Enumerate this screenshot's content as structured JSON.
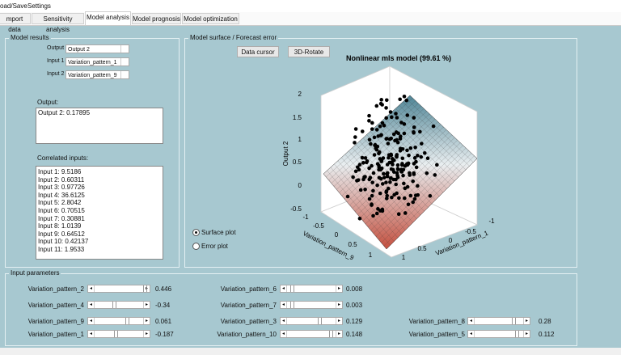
{
  "menu": [
    "oad/Save",
    "Settings"
  ],
  "tabs": [
    "mport data",
    "Sensitivity analysis",
    "Model analysis",
    "Model prognosis",
    "Model optimization"
  ],
  "model_results": {
    "title": "Model results",
    "output_label": "Output",
    "output_value": "Output 2",
    "input1_label": "Input 1",
    "input1_value": "Variation_pattern_1",
    "input2_label": "Input 2",
    "input2_value": "Variation_pattern_9",
    "output_box_label": "Output:",
    "output_box": "Output 2: 0.17895",
    "correlated_label": "Correlated inputs:",
    "correlated": [
      "Input 1: 9.5186",
      "Input 2: 0.60311",
      "Input 3: 0.97726",
      "Input 4: 36.6125",
      "Input 5: 2.8042",
      "Input 6: 0.70515",
      "Input 7: 0.30881",
      "Input 8: 1.0139",
      "Input 9: 0.64512",
      "Input 10: 0.42137",
      "Input 11: 1.9533"
    ]
  },
  "model_surface": {
    "title": "Model surface / Forecast error",
    "buttons": [
      "Data cursor",
      "3D-Rotate"
    ],
    "plot": {
      "title": "Nonlinear mls model (99.61 %)",
      "zlabel": "Output 2",
      "xlabel": "Variation_pattern_9",
      "ylabel": "Variation_pattern_1",
      "zticks": [
        "2",
        "1.5",
        "1",
        "0.5",
        "0",
        "-0.5"
      ],
      "xticks": [
        "-1",
        "-0.5",
        "0",
        "0.5",
        "1"
      ],
      "yticks": [
        "-1",
        "-0.5",
        "0",
        "0.5",
        "1"
      ]
    },
    "radios": [
      "Surface plot",
      "Error plot"
    ]
  },
  "input_parameters": {
    "title": "Input parameters",
    "sliders": [
      {
        "label": "Variation_pattern_2",
        "value": 0.446
      },
      {
        "label": "Variation_pattern_4",
        "value": -0.34
      },
      {
        "label": "Variation_pattern_9",
        "value": 0.061
      },
      {
        "label": "Variation_pattern_1",
        "value": -0.187
      },
      {
        "label": "Variation_pattern_6",
        "value": 0.008
      },
      {
        "label": "Variation_pattern_7",
        "value": 0.003
      },
      {
        "label": "Variation_pattern_3",
        "value": 0.129
      },
      {
        "label": "Variation_pattern_10",
        "value": 0.148
      },
      {
        "label": "Variation_pattern_8",
        "value": 0.28
      },
      {
        "label": "Variation_pattern_5",
        "value": 0.112
      }
    ]
  }
}
